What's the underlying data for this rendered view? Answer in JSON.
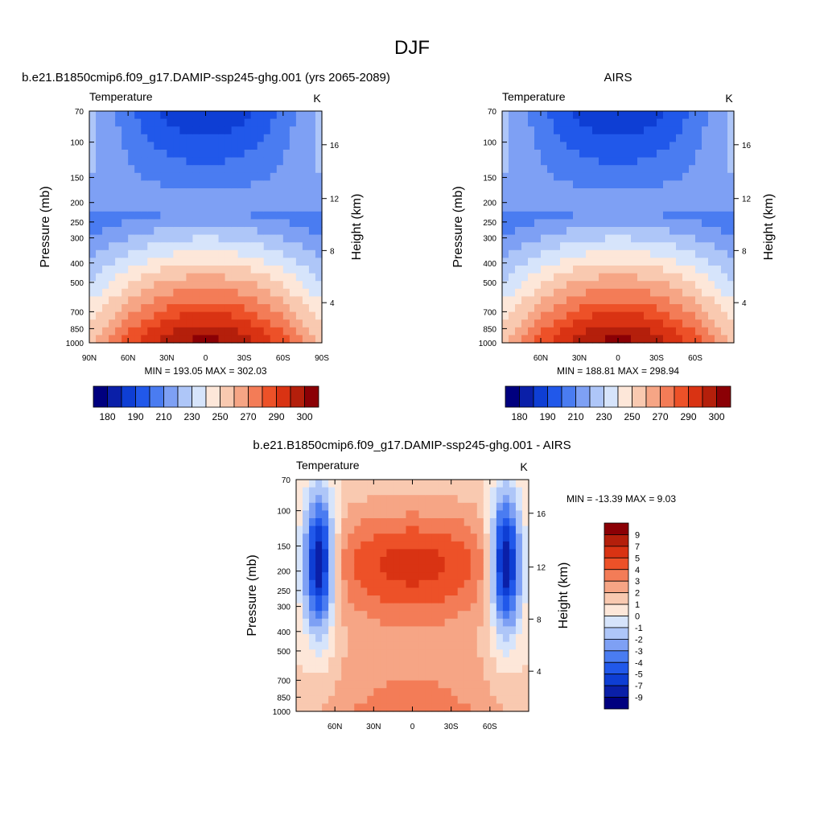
{
  "figure": {
    "title": "DJF"
  },
  "chart_data": [
    {
      "type": "heatmap",
      "panel_title": "b.e21.B1850cmip6.f09_g17.DAMIP-ssp245-ghg.001 (yrs 2065-2089)",
      "variable": "Temperature",
      "units": "K",
      "ylabel": "Pressure (mb)",
      "y2label": "Height (km)",
      "x_ticks": [
        "90N",
        "60N",
        "30N",
        "0",
        "30S",
        "60S",
        "90S"
      ],
      "y_ticks": [
        "70",
        "100",
        "150",
        "200",
        "250",
        "300",
        "400",
        "500",
        "700",
        "850",
        "1000"
      ],
      "y2_ticks": [
        "16",
        "12",
        "8",
        "4"
      ],
      "stats_text": "MIN = 193.05   MAX = 302.03",
      "min": 193.05,
      "max": 302.03,
      "colorbar_labels": [
        "180",
        "190",
        "210",
        "230",
        "250",
        "270",
        "290",
        "300"
      ],
      "colorbar_colors": [
        "#00007f",
        "#0a1fa8",
        "#0e3ed4",
        "#2158ea",
        "#4a7cf1",
        "#7ea0f4",
        "#aec6f8",
        "#d6e4fb",
        "#fde7d9",
        "#f9c9b0",
        "#f6a585",
        "#f37c57",
        "#ed5128",
        "#d93313",
        "#b41f0b",
        "#8b0005"
      ]
    },
    {
      "type": "heatmap",
      "panel_title": "AIRS",
      "variable": "Temperature",
      "units": "K",
      "ylabel": "Pressure (mb)",
      "y2label": "Height (km)",
      "x_ticks": [
        "60N",
        "30N",
        "0",
        "30S",
        "60S"
      ],
      "y_ticks": [
        "70",
        "100",
        "150",
        "200",
        "250",
        "300",
        "400",
        "500",
        "700",
        "850",
        "1000"
      ],
      "y2_ticks": [
        "16",
        "12",
        "8",
        "4"
      ],
      "stats_text": "MIN = 188.81   MAX = 298.94",
      "min": 188.81,
      "max": 298.94,
      "colorbar_labels": [
        "180",
        "190",
        "210",
        "230",
        "250",
        "270",
        "290",
        "300"
      ],
      "colorbar_colors": [
        "#00007f",
        "#0a1fa8",
        "#0e3ed4",
        "#2158ea",
        "#4a7cf1",
        "#7ea0f4",
        "#aec6f8",
        "#d6e4fb",
        "#fde7d9",
        "#f9c9b0",
        "#f6a585",
        "#f37c57",
        "#ed5128",
        "#d93313",
        "#b41f0b",
        "#8b0005"
      ]
    },
    {
      "type": "heatmap",
      "panel_title": "b.e21.B1850cmip6.f09_g17.DAMIP-ssp245-ghg.001 - AIRS",
      "variable": "Temperature",
      "units": "K",
      "ylabel": "Pressure (mb)",
      "y2label": "Height (km)",
      "x_ticks": [
        "60N",
        "30N",
        "0",
        "30S",
        "60S"
      ],
      "y_ticks": [
        "70",
        "100",
        "150",
        "200",
        "250",
        "300",
        "400",
        "500",
        "700",
        "850",
        "1000"
      ],
      "y2_ticks": [
        "16",
        "12",
        "8",
        "4"
      ],
      "stats_text": "MIN = -13.39   MAX =    9.03",
      "min": -13.39,
      "max": 9.03,
      "colorbar_labels": [
        "9",
        "7",
        "5",
        "4",
        "3",
        "2",
        "1",
        "0",
        "-1",
        "-2",
        "-3",
        "-4",
        "-5",
        "-7",
        "-9"
      ],
      "colorbar_colors": [
        "#8b0005",
        "#b41f0b",
        "#d93313",
        "#ed5128",
        "#f37c57",
        "#f6a585",
        "#f9c9b0",
        "#fde7d9",
        "#d6e4fb",
        "#aec6f8",
        "#7ea0f4",
        "#4a7cf1",
        "#2158ea",
        "#0e3ed4",
        "#0a1fa8",
        "#00007f"
      ]
    }
  ]
}
